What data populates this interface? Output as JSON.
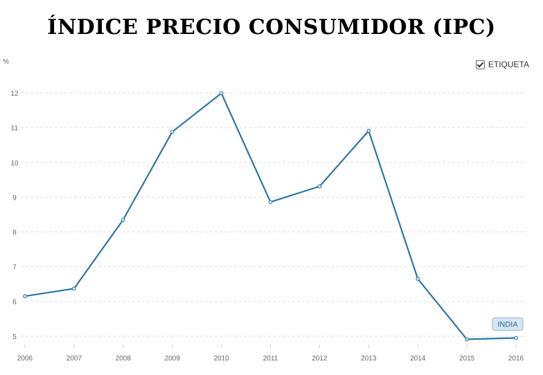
{
  "title": "ÍNDICE PRECIO CONSUMIDOR (IPC)",
  "legend": {
    "label": "ETIQUETA",
    "checked": true
  },
  "colors": {
    "line": "#2a75a8",
    "grid": "#dddddd",
    "tag_bg": "#d6e6f2",
    "tag_border": "#8fb5d3"
  },
  "chart_data": {
    "type": "line",
    "title": "ÍNDICE PRECIO CONSUMIDOR (IPC)",
    "xlabel": "",
    "ylabel": "%",
    "categories": [
      "2006",
      "2007",
      "2008",
      "2009",
      "2010",
      "2011",
      "2012",
      "2013",
      "2014",
      "2015",
      "2016"
    ],
    "series": [
      {
        "name": "INDIA",
        "values": [
          6.15,
          6.37,
          8.35,
          10.88,
          11.99,
          8.86,
          9.31,
          10.91,
          6.65,
          4.91,
          4.95
        ]
      }
    ],
    "ylim": [
      5,
      12
    ],
    "yticks": [
      5,
      6,
      7,
      8,
      9,
      10,
      11,
      12
    ],
    "grid": true,
    "legend_position": "top-right"
  }
}
